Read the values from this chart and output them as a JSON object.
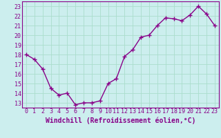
{
  "x": [
    0,
    1,
    2,
    3,
    4,
    5,
    6,
    7,
    8,
    9,
    10,
    11,
    12,
    13,
    14,
    15,
    16,
    17,
    18,
    19,
    20,
    21,
    22,
    23
  ],
  "y": [
    18.0,
    17.5,
    16.5,
    14.5,
    13.8,
    14.0,
    12.8,
    13.0,
    13.0,
    13.2,
    15.0,
    15.5,
    17.8,
    18.5,
    19.8,
    20.0,
    21.0,
    21.8,
    21.7,
    21.5,
    22.1,
    23.0,
    22.2,
    21.0
  ],
  "xlabel": "Windchill (Refroidissement éolien,°C)",
  "ylim": [
    12.5,
    23.5
  ],
  "xlim": [
    -0.5,
    23.5
  ],
  "yticks": [
    13,
    14,
    15,
    16,
    17,
    18,
    19,
    20,
    21,
    22,
    23
  ],
  "xticks": [
    0,
    1,
    2,
    3,
    4,
    5,
    6,
    7,
    8,
    9,
    10,
    11,
    12,
    13,
    14,
    15,
    16,
    17,
    18,
    19,
    20,
    21,
    22,
    23
  ],
  "line_color": "#880088",
  "marker": "+",
  "markersize": 4,
  "linewidth": 1.0,
  "background_color": "#cceeee",
  "grid_color": "#aaddcc",
  "tick_label_fontsize": 6,
  "xlabel_fontsize": 7
}
